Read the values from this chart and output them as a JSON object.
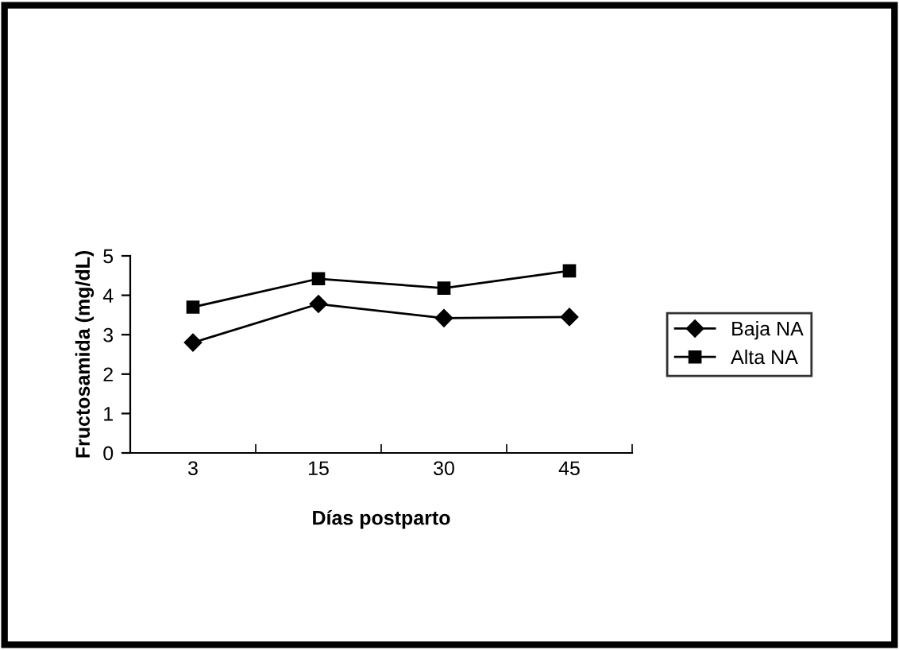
{
  "chart_data": {
    "type": "line",
    "xlabel": "Días postparto",
    "ylabel": "Fructosamida (mg/dL)",
    "categories": [
      "3",
      "15",
      "30",
      "45"
    ],
    "series": [
      {
        "name": "Baja NA",
        "color": "#000000",
        "marker": "diamond",
        "values": [
          2.8,
          3.78,
          3.42,
          3.45
        ]
      },
      {
        "name": "Alta NA",
        "color": "#000000",
        "marker": "square",
        "values": [
          3.7,
          4.42,
          4.18,
          4.62
        ]
      }
    ],
    "ylim": [
      0,
      5
    ],
    "yticks": [
      0,
      1,
      2,
      3,
      4,
      5
    ],
    "grid": false,
    "legend": "right",
    "line_style": "solid"
  }
}
